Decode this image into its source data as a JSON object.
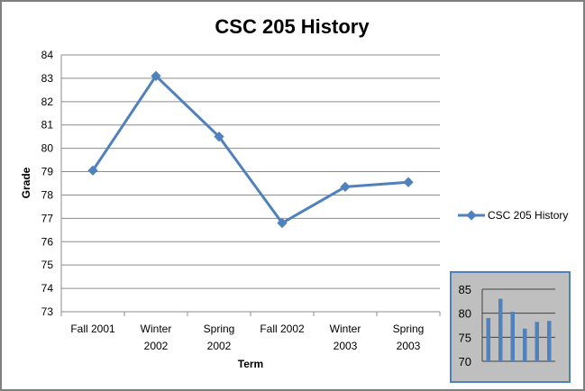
{
  "chart_data": [
    {
      "type": "line",
      "title": "CSC 205 History",
      "xlabel": "Term",
      "ylabel": "Grade",
      "categories": [
        [
          "Fall 2001"
        ],
        [
          "Winter",
          "2002"
        ],
        [
          "Spring",
          "2002"
        ],
        [
          "Fall 2002"
        ],
        [
          "Winter",
          "2003"
        ],
        [
          "Spring",
          "2003"
        ]
      ],
      "series": [
        {
          "name": "CSC 205 History",
          "values": [
            79.05,
            83.1,
            80.5,
            76.8,
            78.35,
            78.55
          ],
          "color": "#4f81bd",
          "marker": "diamond"
        }
      ],
      "ylim": [
        73,
        84
      ],
      "yticks": [
        73,
        74,
        75,
        76,
        77,
        78,
        79,
        80,
        81,
        82,
        83,
        84
      ],
      "grid": "horizontal",
      "legend": "right"
    },
    {
      "type": "bar",
      "title": "",
      "values": [
        79,
        83,
        80.3,
        76.8,
        78.2,
        78.4
      ],
      "ylim": [
        70,
        85
      ],
      "yticks": [
        70,
        75,
        80,
        85
      ],
      "color": "#4f81bd",
      "background": "#bfbfbf",
      "border_color": "#4f81bd",
      "grid": "horizontal"
    }
  ]
}
